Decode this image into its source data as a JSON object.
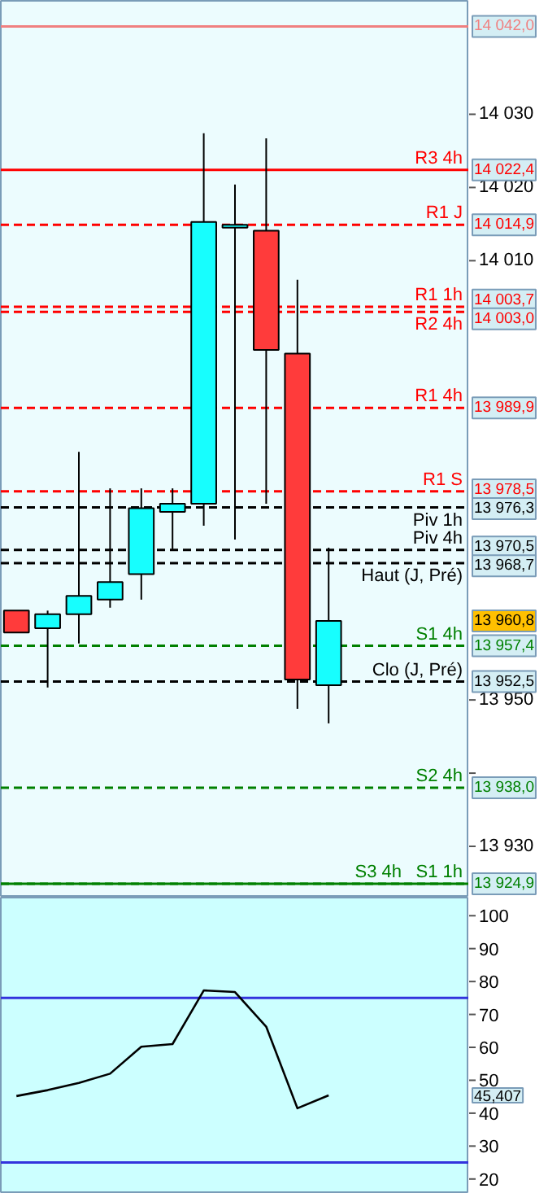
{
  "chart_data": [
    {
      "type": "candlestick",
      "categories": [
        null,
        null,
        null,
        null,
        null,
        null,
        null,
        null,
        null,
        null,
        null,
        null,
        null,
        null,
        null
      ],
      "ohlc": [
        [
          13962.2,
          13962.2,
          13959.2,
          13959.2
        ],
        [
          13959.8,
          13962.2,
          13951.7,
          13961.7
        ],
        [
          13961.7,
          13983.9,
          13957.7,
          13964.2
        ],
        [
          13963.7,
          13978.9,
          13962.6,
          13966.1
        ],
        [
          13967.2,
          13978.9,
          13963.7,
          13976.2
        ],
        [
          13975.7,
          13978.9,
          13970.6,
          13976.8
        ],
        [
          13976.8,
          14027.4,
          13973.8,
          14015.3
        ],
        [
          14014.9,
          14020.4,
          13971.9,
          14014.5
        ],
        [
          14014.1,
          14026.7,
          13976.8,
          13997.8
        ],
        [
          13997.3,
          14007.4,
          13948.8,
          13952.8
        ],
        [
          13952.0,
          13970.8,
          13946.8,
          13960.8
        ],
        null,
        null,
        null,
        null
      ],
      "colors": [
        "#ff3b3b",
        "#17fefe",
        "#17fefe",
        "#17fefe",
        "#17fefe",
        "#17fefe",
        "#17fefe",
        "#17fefe",
        "#ff3b3b",
        "#ff3b3b",
        "#17fefe",
        null,
        null,
        null,
        null
      ],
      "ylim": [
        13923.0,
        14045.5
      ],
      "yticks": [
        {
          "value": 13930,
          "label": "13 930"
        },
        {
          "value": 13940,
          "label": null
        },
        {
          "value": 13950,
          "label": "13 950"
        },
        {
          "value": 14010,
          "label": "14 010"
        },
        {
          "value": 14020,
          "label": "14 020"
        },
        {
          "value": 14030,
          "label": "14 030"
        }
      ],
      "tick_labels": "y",
      "ref_lines": [
        {
          "axis": "y",
          "value": 14042.0,
          "label": null,
          "color": "#f08080",
          "line_style": "solid"
        },
        {
          "axis": "y",
          "value": 14022.4,
          "label": "R3 4h",
          "color": "#ff0000",
          "line_style": "solid"
        },
        {
          "axis": "y",
          "value": 14014.9,
          "label": "R1 J",
          "color": "#ff0000",
          "line_style": "dashed"
        },
        {
          "axis": "y",
          "value": 14003.7,
          "label": "R1 1h",
          "color": "#ff0000",
          "line_style": "dashed"
        },
        {
          "axis": "y",
          "value": 14003.0,
          "label": "R2 4h",
          "color": "#ff0000",
          "line_style": "dashed"
        },
        {
          "axis": "y",
          "value": 13989.9,
          "label": "R1 4h",
          "color": "#ff0000",
          "line_style": "dashed"
        },
        {
          "axis": "y",
          "value": 13978.5,
          "label": "R1 S",
          "color": "#ff0000",
          "line_style": "dashed"
        },
        {
          "axis": "y",
          "value": 13976.3,
          "label": "Piv 1h",
          "color": "#000000",
          "line_style": "dashed"
        },
        {
          "axis": "y",
          "value": 13970.5,
          "label": "Piv 4h",
          "color": "#000000",
          "line_style": "dashed"
        },
        {
          "axis": "y",
          "value": 13968.7,
          "label": "Haut (J, Pré)",
          "color": "#000000",
          "line_style": "dashed"
        },
        {
          "axis": "y",
          "value": 13957.4,
          "label": "S1 4h",
          "color": "#008000",
          "line_style": "dashed"
        },
        {
          "axis": "y",
          "value": 13952.5,
          "label": "Clo (J, Pré)",
          "color": "#000000",
          "line_style": "dashed"
        },
        {
          "axis": "y",
          "value": 13938.0,
          "label": "S2 4h",
          "color": "#008000",
          "line_style": "dashed"
        },
        {
          "axis": "y",
          "value": 13924.9,
          "label": "S1 1h",
          "color": "#008000",
          "line_style": "solid"
        },
        {
          "axis": "y",
          "value": 13924.9,
          "label": "S3 4h",
          "color": "#008000",
          "line_style": "dashed"
        }
      ],
      "y2lim": [
        13923.0,
        14045.5
      ],
      "y2ticks": [
        {
          "value": 14042.0,
          "label": "14 042,0"
        },
        {
          "value": 14022.4,
          "label": "14 022,4"
        },
        {
          "value": 14014.9,
          "label": "14 014,9"
        },
        {
          "value": 14003.7,
          "label": "14 003,7"
        },
        {
          "value": 14003.0,
          "label": "14 003,0"
        },
        {
          "value": 13989.9,
          "label": "13 989,9"
        },
        {
          "value": 13978.5,
          "label": "13 978,5"
        },
        {
          "value": 13976.3,
          "label": "13 976,3"
        },
        {
          "value": 13970.5,
          "label": "13 970,5"
        },
        {
          "value": 13968.7,
          "label": "13 968,7"
        },
        {
          "value": 13960.8,
          "label": "13 960,8"
        },
        {
          "value": 13957.4,
          "label": "13 957,4"
        },
        {
          "value": 13952.5,
          "label": "13 952,5"
        },
        {
          "value": 13938.0,
          "label": "13 938,0"
        },
        {
          "value": 13924.9,
          "label": "13 924,9"
        }
      ]
    },
    {
      "type": "line",
      "categories": [
        null,
        null,
        null,
        null,
        null,
        null,
        null,
        null,
        null,
        null,
        null,
        null,
        null,
        null,
        null
      ],
      "series": [
        {
          "color": "#000000",
          "values": [
            45.2,
            47.0,
            49.2,
            52.0,
            60.2,
            61.0,
            77.3,
            76.8,
            66.3,
            41.5,
            45.407,
            null,
            null,
            null,
            null
          ]
        }
      ],
      "ylim": [
        15.5,
        105.5
      ],
      "yticks": [
        20,
        30,
        40,
        50,
        60,
        70,
        80,
        90,
        100
      ],
      "tick_labels": "y",
      "marker": "none",
      "ref_lines": [
        {
          "axis": "y",
          "value": 75,
          "label": null,
          "color": "#3333dd",
          "line_style": "solid"
        },
        {
          "axis": "y",
          "value": 25,
          "label": null,
          "color": "#3333dd",
          "line_style": "solid"
        }
      ],
      "annotations": [
        "45,407"
      ]
    }
  ]
}
